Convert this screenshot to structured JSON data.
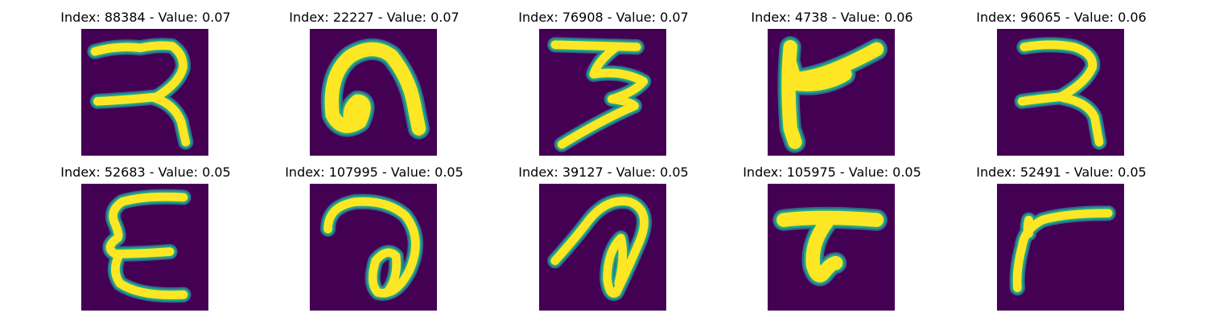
{
  "colors": {
    "background": "#440154",
    "mid_dark": "#31688e",
    "mid": "#21918c",
    "mid_light": "#35b779",
    "foreground": "#fde725"
  },
  "panels": [
    {
      "title": "Index: 88384 - Value: 0.07",
      "index": 88384,
      "value": 0.07,
      "glyph": "glyph-ra-icon"
    },
    {
      "title": "Index: 22227 - Value: 0.07",
      "index": 22227,
      "value": 0.07,
      "glyph": "glyph-loop-icon"
    },
    {
      "title": "Index: 76908 - Value: 0.07",
      "index": 76908,
      "value": 0.07,
      "glyph": "glyph-three-icon"
    },
    {
      "title": "Index: 4738 - Value: 0.06",
      "index": 4738,
      "value": 0.06,
      "glyph": "glyph-flag-icon"
    },
    {
      "title": "Index: 96065 - Value: 0.06",
      "index": 96065,
      "value": 0.06,
      "glyph": "glyph-ra-bold-icon"
    },
    {
      "title": "Index: 52683 - Value: 0.05",
      "index": 52683,
      "value": 0.05,
      "glyph": "glyph-e-icon"
    },
    {
      "title": "Index: 107995 - Value: 0.05",
      "index": 107995,
      "value": 0.05,
      "glyph": "glyph-curl-icon"
    },
    {
      "title": "Index: 39127 - Value: 0.05",
      "index": 39127,
      "value": 0.05,
      "glyph": "glyph-curl-slant-icon"
    },
    {
      "title": "Index: 105975 - Value: 0.05",
      "index": 105975,
      "value": 0.05,
      "glyph": "glyph-ta-icon"
    },
    {
      "title": "Index: 52491 - Value: 0.05",
      "index": 52491,
      "value": 0.05,
      "glyph": "glyph-hook-icon"
    }
  ]
}
